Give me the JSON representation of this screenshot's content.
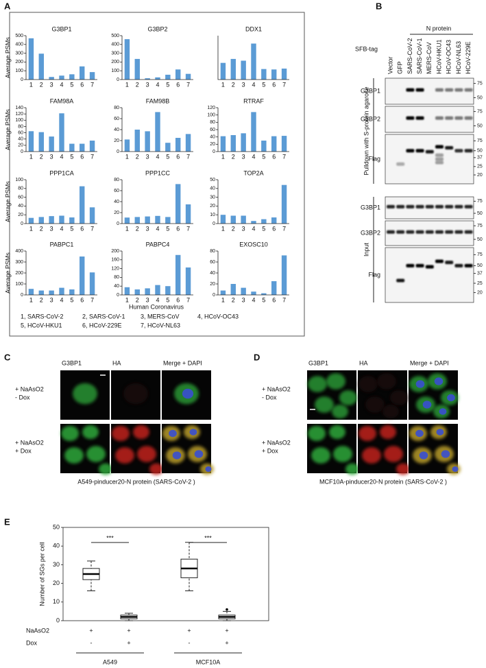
{
  "panel_labels": [
    "A",
    "B",
    "C",
    "D",
    "E"
  ],
  "panel_a": {
    "xlabel": "Human Coronavirus",
    "legend": [
      "1, SARS-CoV-2",
      "2, SARS-CoV-1",
      "3, MERS-CoV",
      "4, HCoV-OC43",
      "5, HCoV-HKU1",
      "6, HCoV-229E",
      "7, HCoV-NL63"
    ]
  },
  "chart_data": [
    {
      "type": "bar",
      "title": "G3BP1",
      "ylabel": "Average PSMs",
      "categories": [
        "1",
        "2",
        "3",
        "4",
        "5",
        "6",
        "7"
      ],
      "values": [
        470,
        295,
        30,
        45,
        60,
        150,
        85
      ],
      "color": "#5b9bd5",
      "ylim": [
        0,
        500
      ],
      "yticks": [
        0,
        100,
        200,
        300,
        400,
        500
      ]
    },
    {
      "type": "bar",
      "title": "G3BP2",
      "categories": [
        "1",
        "2",
        "3",
        "4",
        "5",
        "6",
        "7"
      ],
      "values": [
        460,
        235,
        15,
        25,
        55,
        115,
        65
      ],
      "color": "#5b9bd5",
      "ylim": [
        0,
        500
      ],
      "yticks": [
        0,
        100,
        200,
        300,
        400,
        500
      ]
    },
    {
      "type": "bar",
      "title": "DDX1",
      "categories": [
        "1",
        "2",
        "3",
        "4",
        "5",
        "6",
        "7"
      ],
      "values": [
        190,
        235,
        215,
        410,
        120,
        115,
        125
      ],
      "color": "#5b9bd5",
      "ylim": [
        0,
        500
      ]
    },
    {
      "type": "bar",
      "title": "FAM98A",
      "ylabel": "Average PSMs",
      "categories": [
        "1",
        "2",
        "3",
        "4",
        "5",
        "6",
        "7"
      ],
      "values": [
        65,
        62,
        48,
        122,
        25,
        25,
        35
      ],
      "color": "#5b9bd5",
      "ylim": [
        0,
        140
      ],
      "yticks": [
        0,
        20,
        40,
        60,
        80,
        100,
        120,
        140
      ]
    },
    {
      "type": "bar",
      "title": "FAM98B",
      "categories": [
        "1",
        "2",
        "3",
        "4",
        "5",
        "6",
        "7"
      ],
      "values": [
        22,
        40,
        37,
        72,
        16,
        25,
        32
      ],
      "color": "#5b9bd5",
      "ylim": [
        0,
        80
      ],
      "yticks": [
        0,
        20,
        40,
        60,
        80
      ]
    },
    {
      "type": "bar",
      "title": "RTRAF",
      "categories": [
        "1",
        "2",
        "3",
        "4",
        "5",
        "6",
        "7"
      ],
      "values": [
        42,
        45,
        50,
        108,
        30,
        42,
        43
      ],
      "color": "#5b9bd5",
      "ylim": [
        0,
        120
      ],
      "yticks": [
        0,
        20,
        40,
        60,
        80,
        100,
        120
      ]
    },
    {
      "type": "bar",
      "title": "PPP1CA",
      "ylabel": "Average PSMs",
      "categories": [
        "1",
        "2",
        "3",
        "4",
        "5",
        "6",
        "7"
      ],
      "values": [
        13,
        15,
        17,
        18,
        14,
        85,
        37
      ],
      "color": "#5b9bd5",
      "ylim": [
        0,
        100
      ],
      "yticks": [
        0,
        20,
        40,
        60,
        80,
        100
      ]
    },
    {
      "type": "bar",
      "title": "PPP1CC",
      "categories": [
        "1",
        "2",
        "3",
        "4",
        "5",
        "6",
        "7"
      ],
      "values": [
        11,
        12,
        13,
        14,
        12,
        72,
        35
      ],
      "color": "#5b9bd5",
      "ylim": [
        0,
        80
      ],
      "yticks": [
        0,
        20,
        40,
        60,
        80
      ]
    },
    {
      "type": "bar",
      "title": "TOP2A",
      "categories": [
        "1",
        "2",
        "3",
        "4",
        "5",
        "6",
        "7"
      ],
      "values": [
        10,
        9,
        9,
        3,
        5,
        7,
        44
      ],
      "color": "#5b9bd5",
      "ylim": [
        0,
        50
      ],
      "yticks": [
        0,
        10,
        20,
        30,
        40,
        50
      ]
    },
    {
      "type": "bar",
      "title": "PABPC1",
      "ylabel": "Average PSMs",
      "categories": [
        "1",
        "2",
        "3",
        "4",
        "5",
        "6",
        "7"
      ],
      "values": [
        55,
        40,
        40,
        65,
        50,
        350,
        205
      ],
      "color": "#5b9bd5",
      "ylim": [
        0,
        400
      ],
      "yticks": [
        0,
        100,
        200,
        300,
        400
      ]
    },
    {
      "type": "bar",
      "title": "PABPC4",
      "categories": [
        "1",
        "2",
        "3",
        "4",
        "5",
        "6",
        "7"
      ],
      "values": [
        35,
        25,
        30,
        45,
        40,
        182,
        125
      ],
      "color": "#5b9bd5",
      "ylim": [
        0,
        200
      ],
      "yticks": [
        0,
        40,
        80,
        120,
        160,
        200
      ]
    },
    {
      "type": "bar",
      "title": "EXOSC10",
      "categories": [
        "1",
        "2",
        "3",
        "4",
        "5",
        "6",
        "7"
      ],
      "values": [
        8,
        20,
        13,
        6,
        3,
        25,
        72
      ],
      "color": "#5b9bd5",
      "ylim": [
        0,
        80
      ],
      "yticks": [
        0,
        20,
        40,
        60,
        80
      ]
    },
    {
      "type": "box",
      "ylabel": "Number of SGs per cell",
      "ylim": [
        0,
        50
      ],
      "yticks": [
        0,
        10,
        20,
        30,
        40,
        50
      ],
      "boxes": [
        {
          "min": 16,
          "q1": 22,
          "median": 25,
          "q3": 28,
          "max": 32,
          "outliers": []
        },
        {
          "min": 0,
          "q1": 1,
          "median": 2,
          "q3": 3,
          "max": 4,
          "outliers": []
        },
        {
          "min": 16,
          "q1": 23,
          "median": 28,
          "q3": 33,
          "max": 42,
          "outliers": []
        },
        {
          "min": 0,
          "q1": 1,
          "median": 2,
          "q3": 3,
          "max": 5,
          "outliers": [
            6
          ]
        }
      ],
      "conditions": [
        {
          "name": "NaAsO2",
          "values": [
            "+",
            "+",
            "+",
            "+"
          ]
        },
        {
          "name": "Dox",
          "values": [
            "-",
            "+",
            "-",
            "+"
          ]
        }
      ],
      "groups": [
        "A549",
        "MCF10A"
      ],
      "significance": [
        "***",
        "***"
      ]
    }
  ],
  "panel_b": {
    "header": "N protein",
    "tag": "SFB-tag",
    "lanes": [
      "Vector",
      "GFP",
      "SARS-CoV-2",
      "SARS-CoV-1",
      "MERS-CoV",
      "HCoV-HKU1",
      "HCoV-OC43",
      "HCoV-NL63",
      "HCoV-229E"
    ],
    "sections": [
      {
        "label": "Pulldown with S-protein agarose",
        "blots": [
          {
            "name": "G3BP1",
            "markers": [
              "75",
              "50"
            ]
          },
          {
            "name": "G3BP2",
            "markers": [
              "75",
              "50"
            ]
          },
          {
            "name": "Flag",
            "markers": [
              "75",
              "50",
              "37",
              "25",
              "20"
            ]
          }
        ]
      },
      {
        "label": "Input",
        "blots": [
          {
            "name": "G3BP1",
            "markers": [
              "75",
              "50"
            ]
          },
          {
            "name": "G3BP2",
            "markers": [
              "75",
              "50"
            ]
          },
          {
            "name": "Flag",
            "markers": [
              "75",
              "50",
              "37",
              "25",
              "20"
            ]
          }
        ]
      }
    ]
  },
  "panel_c": {
    "columns": [
      "G3BP1",
      "HA",
      "Merge + DAPI"
    ],
    "rows": [
      [
        "+ NaAsO2",
        "- Dox"
      ],
      [
        "+ NaAsO2",
        "+ Dox"
      ]
    ],
    "caption": "A549-pinducer20-N protein (SARS-CoV-2 )"
  },
  "panel_d": {
    "columns": [
      "G3BP1",
      "HA",
      "Merge + DAPI"
    ],
    "rows": [
      [
        "+ NaAsO2",
        "- Dox"
      ],
      [
        "+ NaAsO2",
        "+ Dox"
      ]
    ],
    "caption": "MCF10A-pinducer20-N protein (SARS-CoV-2 )"
  }
}
